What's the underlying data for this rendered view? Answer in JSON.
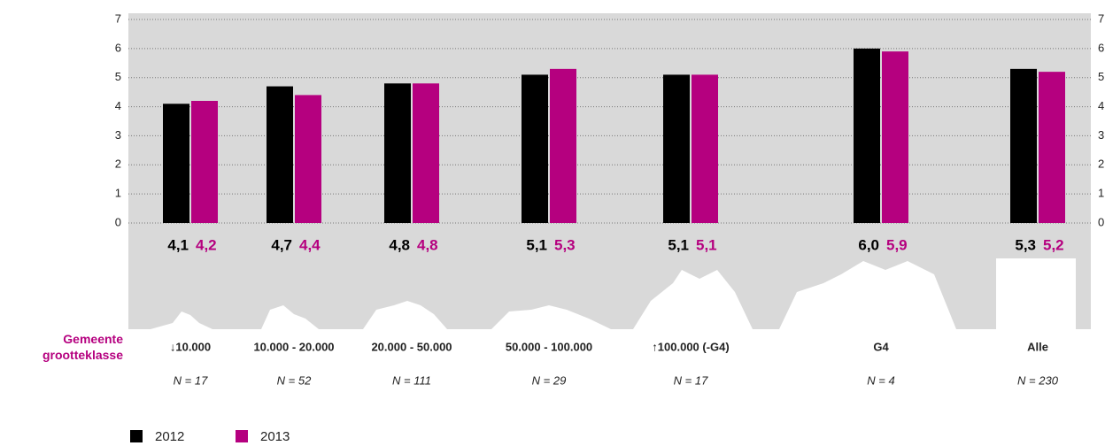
{
  "chart_data": {
    "type": "bar",
    "categories": [
      "↓10.000",
      "10.000 - 20.000",
      "20.000 - 50.000",
      "50.000 - 100.000",
      "↑100.000 (-G4)",
      "G4",
      "Alle"
    ],
    "n_labels": [
      "N = 17",
      "N = 52",
      "N = 111",
      "N = 29",
      "N = 17",
      "N = 4",
      "N = 230"
    ],
    "x_axis_title": "Gemeente grootteklasse",
    "series": [
      {
        "name": "2012",
        "color": "#000000",
        "values": [
          4.1,
          4.7,
          4.8,
          5.1,
          5.1,
          6.0,
          5.3
        ],
        "value_labels": [
          "4,1",
          "4,7",
          "4,8",
          "5,1",
          "5,1",
          "6,0",
          "5,3"
        ]
      },
      {
        "name": "2013",
        "color": "#b5007f",
        "values": [
          4.2,
          4.4,
          4.8,
          5.3,
          5.1,
          5.9,
          5.2
        ],
        "value_labels": [
          "4,2",
          "4,4",
          "4,8",
          "5,3",
          "5,1",
          "5,9",
          "5,2"
        ]
      }
    ],
    "ylim": [
      0,
      7
    ],
    "yticks": [
      0,
      1,
      2,
      3,
      4,
      5,
      6,
      7
    ],
    "grid": true
  }
}
